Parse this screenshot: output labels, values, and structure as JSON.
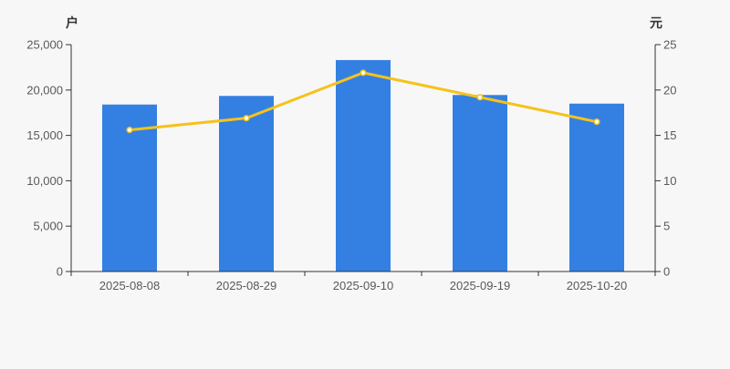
{
  "chart_data": {
    "type": "bar",
    "categories": [
      "2025-08-08",
      "2025-08-29",
      "2025-09-10",
      "2025-09-19",
      "2025-10-20"
    ],
    "series": [
      {
        "name": "bar-series",
        "type": "bar",
        "axis": "left",
        "values": [
          18400,
          19350,
          23300,
          19450,
          18500
        ],
        "color": "#3380e2"
      },
      {
        "name": "line-series",
        "type": "line",
        "axis": "right",
        "values": [
          15.6,
          16.9,
          21.9,
          19.2,
          16.5
        ],
        "color": "#f6c21b",
        "marker": "circle",
        "marker_fill": "#ffffff"
      }
    ],
    "left_axis": {
      "title": "户",
      "min": 0,
      "max": 25000,
      "tick_interval": 5000,
      "tick_labels": [
        "0",
        "5,000",
        "10,000",
        "15,000",
        "20,000",
        "25,000"
      ]
    },
    "right_axis": {
      "title": "元",
      "min": 0,
      "max": 25,
      "tick_interval": 5,
      "tick_labels": [
        "0",
        "5",
        "10",
        "15",
        "20",
        "25"
      ]
    },
    "grid": false,
    "legend": false
  },
  "colors": {
    "background": "#f7f7f8",
    "axis_line": "#333333",
    "tick_label": "#595959",
    "axis_title": "#333333"
  }
}
